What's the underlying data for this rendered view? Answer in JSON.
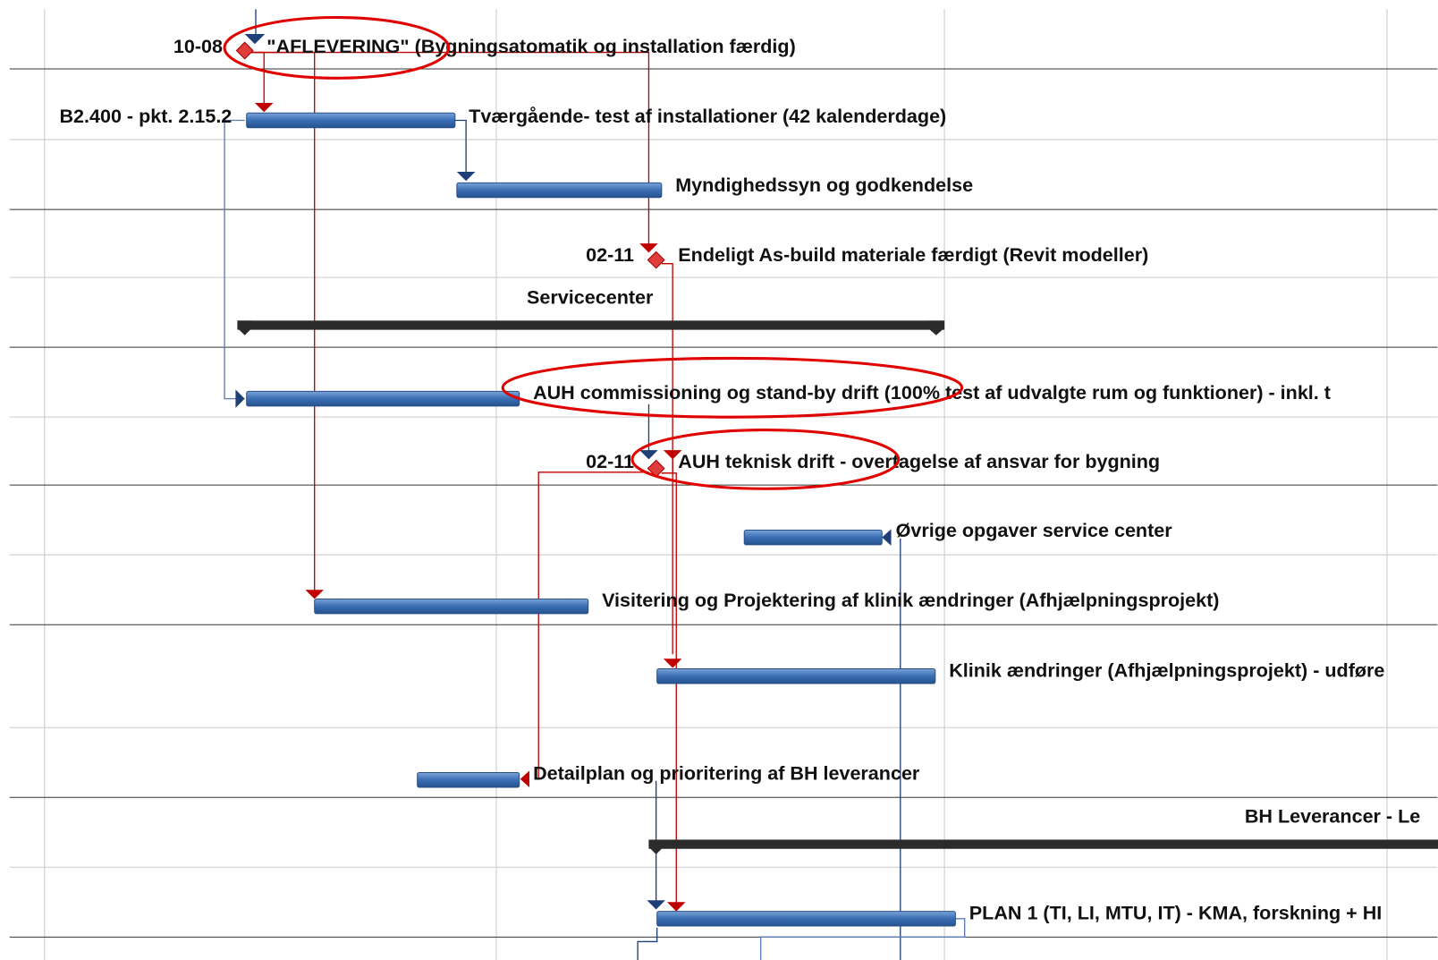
{
  "tasks": [
    {
      "date": "10-08",
      "label": "\"AFLEVERING\" (Bygningsatomatik og installation færdig)"
    },
    {
      "left_label": "B2.400 - pkt. 2.15.2",
      "label": "Tværgående- test af installationer (42 kalenderdage)"
    },
    {
      "label": "Myndighedssyn og godkendelse"
    },
    {
      "date": "02-11",
      "label": "Endeligt As-build materiale færdigt (Revit modeller)"
    },
    {
      "label": "Servicecenter"
    },
    {
      "label": "AUH commissioning og stand-by drift (100% test af udvalgte rum og funktioner) - inkl. t"
    },
    {
      "date": "02-11",
      "label": "AUH teknisk drift - overtagelse af ansvar for bygning"
    },
    {
      "label": "Øvrige opgaver service center"
    },
    {
      "label": "Visitering og Projektering af klinik ændringer (Afhjælpningsprojekt)"
    },
    {
      "label": "Klinik ændringer (Afhjælpningsprojekt) - udføre"
    },
    {
      "label": "Detailplan og prioritering af BH leverancer"
    },
    {
      "label": "BH Leverancer - Le"
    },
    {
      "label": "PLAN 1 (TI, LI, MTU, IT) -  KMA, forskning + HI"
    }
  ]
}
